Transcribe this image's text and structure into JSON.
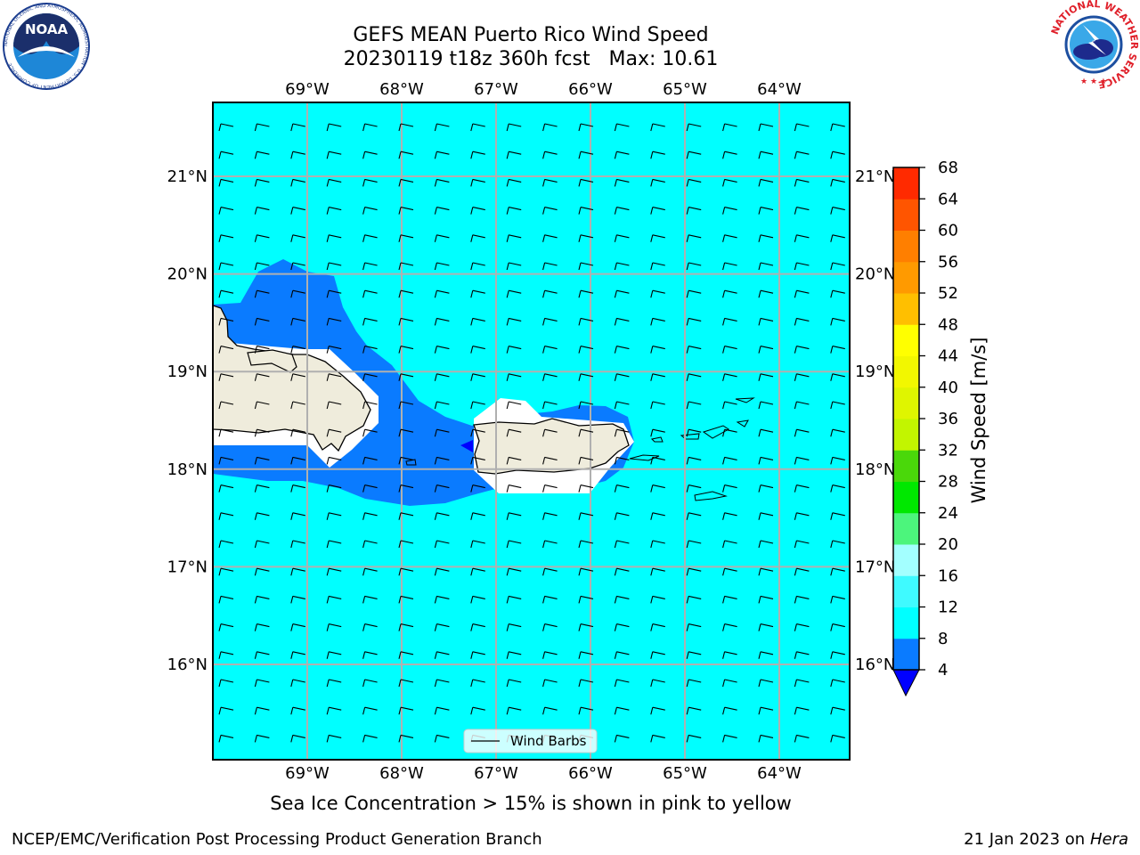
{
  "title": {
    "line1": "GEFS MEAN Puerto Rico Wind Speed",
    "line2": "20230119 t18z 360h fcst   Max: 10.61"
  },
  "logos": {
    "left": "noaa-logo",
    "left_text": "NOAA",
    "left_ring": "NATIONAL OCEANIC AND ATMOSPHERIC ADMINISTRATION · U.S. DEPARTMENT OF COMMERCE",
    "right": "nws-logo",
    "right_ring": "NATIONAL WEATHER SERVICE"
  },
  "map": {
    "lon_labels": [
      "69°W",
      "68°W",
      "67°W",
      "66°W",
      "65°W",
      "64°W"
    ],
    "lat_labels": [
      "21°N",
      "20°N",
      "19°N",
      "18°N",
      "17°N",
      "16°N"
    ],
    "legend_label": "Wind Barbs",
    "colors": {
      "ocean": "#00ffff",
      "calm": "#0a7bff",
      "land": "#efecdc",
      "grid": "#b0b0b0"
    }
  },
  "colorbar": {
    "label": "Wind Speed [m/s]",
    "ticks": [
      "4",
      "8",
      "12",
      "16",
      "20",
      "24",
      "28",
      "32",
      "36",
      "40",
      "44",
      "48",
      "52",
      "56",
      "60",
      "64",
      "68"
    ],
    "colors": [
      "#0a7bff",
      "#00ffff",
      "#3ffaff",
      "#a3ffff",
      "#4cf57c",
      "#00e800",
      "#4ad80a",
      "#c2f500",
      "#dff500",
      "#f2f700",
      "#ffff00",
      "#ffbf00",
      "#ff9a00",
      "#ff7f00",
      "#ff5500",
      "#ff2a00"
    ],
    "under_color": "#0000ff"
  },
  "note": "Sea Ice Concentration > 15% is shown in pink to yellow",
  "footer": {
    "left": "NCEP/EMC/Verification Post Processing Product Generation Branch",
    "right_date": "21 Jan 2023 on",
    "right_host": "Hera"
  }
}
